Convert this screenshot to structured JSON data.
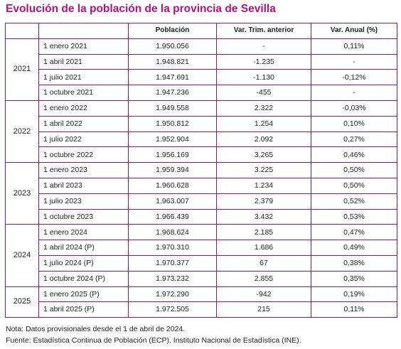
{
  "title": "Evolución de la población de la provincia de Sevilla",
  "columns": [
    "",
    "",
    "Población",
    "Var. Trim. anterior",
    "Var. Anual (%)"
  ],
  "groups": [
    {
      "year": "2021",
      "rows": [
        {
          "period": "1 enero 2021",
          "population": "1.950.056",
          "var_trim": "-",
          "var_anual": "0,11%"
        },
        {
          "period": "1 abril 2021",
          "population": "1.948.821",
          "var_trim": "-1.235",
          "var_anual": "-"
        },
        {
          "period": "1 julio 2021",
          "population": "1.947.691",
          "var_trim": "-1.130",
          "var_anual": "-0,12%"
        },
        {
          "period": "1 octubre 2021",
          "population": "1.947.236",
          "var_trim": "-455",
          "var_anual": "-"
        }
      ]
    },
    {
      "year": "2022",
      "rows": [
        {
          "period": "1 enero 2022",
          "population": "1.949.558",
          "var_trim": "2.322",
          "var_anual": "-0,03%"
        },
        {
          "period": "1 abril 2022",
          "population": "1.950.812",
          "var_trim": "1.254",
          "var_anual": "0,10%"
        },
        {
          "period": "1 julio 2022",
          "population": "1.952.904",
          "var_trim": "2.092",
          "var_anual": "0,27%"
        },
        {
          "period": "1 octubre 2022",
          "population": "1.956.169",
          "var_trim": "3.265",
          "var_anual": "0,46%"
        }
      ]
    },
    {
      "year": "2023",
      "rows": [
        {
          "period": "1 enero 2023",
          "population": "1.959.394",
          "var_trim": "3.225",
          "var_anual": "0,50%"
        },
        {
          "period": "1 abril 2023",
          "population": "1.960.628",
          "var_trim": "1.234",
          "var_anual": "0,50%"
        },
        {
          "period": "1 julio 2023",
          "population": "1.963.007",
          "var_trim": "2.379",
          "var_anual": "0,52%"
        },
        {
          "period": "1 octubre 2023",
          "population": "1.966.439",
          "var_trim": "3.432",
          "var_anual": "0,53%"
        }
      ]
    },
    {
      "year": "2024",
      "rows": [
        {
          "period": "1 enero 2024",
          "population": "1.968.624",
          "var_trim": "2.185",
          "var_anual": "0,47%"
        },
        {
          "period": "1 abril 2024 (P)",
          "population": "1.970.310",
          "var_trim": "1.686",
          "var_anual": "0,49%"
        },
        {
          "period": "1 julio 2024 (P)",
          "population": "1.970.377",
          "var_trim": "67",
          "var_anual": "0,38%"
        },
        {
          "period": "1 octubre 2024 (P)",
          "population": "1.973.232",
          "var_trim": "2.855",
          "var_anual": "0,35%"
        }
      ]
    },
    {
      "year": "2025",
      "rows": [
        {
          "period": "1 enero 2025 (P)",
          "population": "1.972.290",
          "var_trim": "-942",
          "var_anual": "0,19%"
        },
        {
          "period": "1 abril 2025 (P)",
          "population": "1.972.505",
          "var_trim": "215",
          "var_anual": "0,11%"
        }
      ]
    }
  ],
  "notes": {
    "note": "Nota: Datos provisionales desde el 1 de abril de 2024.",
    "source": "Fuente: Estadística Continua de Población (ECP). Instituto Nacional de Estadística (INE)."
  },
  "colors": {
    "title": "#b5127e",
    "border": "#8a1a63"
  }
}
